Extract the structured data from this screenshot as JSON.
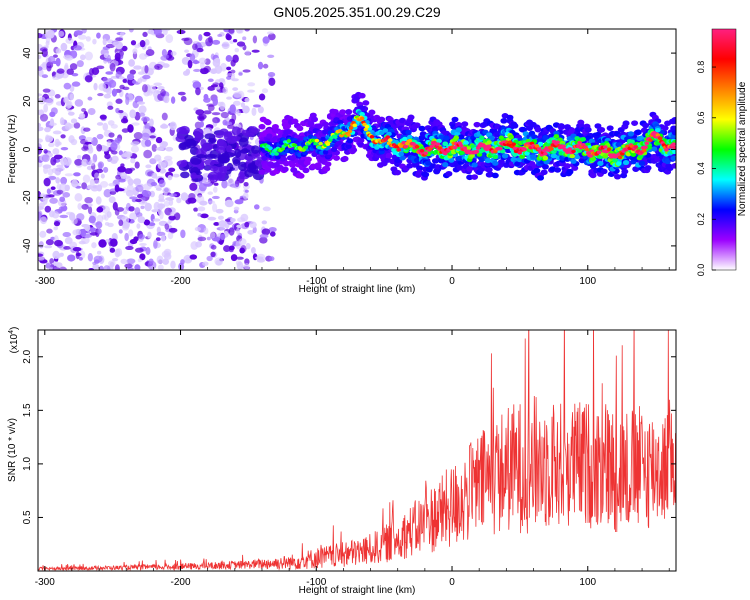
{
  "title": "GN05.2025.351.00.29.C29",
  "chart_data": [
    {
      "type": "heatmap",
      "panel": "spectrogram",
      "xlabel": "Height of straight line (km)",
      "ylabel": "Frequency (Hz)",
      "xlim": [
        -305,
        165
      ],
      "ylim": [
        -50,
        50
      ],
      "xticks": [
        "-300",
        "-200",
        "-100",
        "0",
        "100"
      ],
      "xtick_values": [
        -300,
        -200,
        -100,
        0,
        100
      ],
      "yticks": [
        "-40",
        "-20",
        "0",
        "20",
        "40"
      ],
      "ytick_values": [
        -40,
        -20,
        0,
        20,
        40
      ],
      "colorbar": {
        "label": "Normalized spectral amplitude",
        "range": [
          0,
          0.95
        ],
        "ticks": [
          "0.0",
          "0.2",
          "0.4",
          "0.6",
          "0.8"
        ],
        "tick_values": [
          0.0,
          0.2,
          0.4,
          0.6,
          0.8
        ],
        "stops": [
          "#ffffff",
          "#9b00ff",
          "#0000ff",
          "#00ffff",
          "#00ff00",
          "#ffff00",
          "#ff8000",
          "#ff0000",
          "#ff2080"
        ]
      },
      "ridge": {
        "x": [
          -140,
          -120,
          -100,
          -85,
          -75,
          -70,
          -65,
          -55,
          -40,
          -20,
          0,
          20,
          40,
          60,
          80,
          100,
          120,
          140,
          150,
          165
        ],
        "freq": [
          0,
          1,
          2,
          5,
          9,
          12,
          10,
          4,
          2,
          0,
          1,
          0,
          2,
          0,
          1,
          0,
          -2,
          1,
          5,
          0
        ],
        "amplitude": [
          0.3,
          0.35,
          0.4,
          0.45,
          0.5,
          0.55,
          0.55,
          0.6,
          0.7,
          0.85,
          0.9,
          0.85,
          0.9,
          0.85,
          0.9,
          0.85,
          0.9,
          0.9,
          0.85,
          0.8
        ]
      },
      "noise_region_end": -140
    },
    {
      "type": "line",
      "panel": "snr",
      "xlabel": "Height of straight line (km)",
      "ylabel": "SNR (10 * v/v)",
      "yscale_label": "(x10",
      "yscale_exponent": "4",
      "xlim": [
        -305,
        165
      ],
      "ylim": [
        0,
        2.25
      ],
      "xticks": [
        "-300",
        "-200",
        "-100",
        "0",
        "100"
      ],
      "xtick_values": [
        -300,
        -200,
        -100,
        0,
        100
      ],
      "yticks": [
        "0.5",
        "1.0",
        "1.5",
        "2.0"
      ],
      "ytick_values": [
        0.5,
        1.0,
        1.5,
        2.0
      ],
      "color": "#ee3333",
      "envelope": {
        "x": [
          -305,
          -250,
          -200,
          -150,
          -120,
          -100,
          -80,
          -60,
          -40,
          -20,
          0,
          20,
          40,
          60,
          80,
          100,
          120,
          140,
          165
        ],
        "mean": [
          0.02,
          0.03,
          0.04,
          0.06,
          0.08,
          0.12,
          0.15,
          0.2,
          0.3,
          0.45,
          0.6,
          0.8,
          0.95,
          1.0,
          1.0,
          1.0,
          0.95,
          0.95,
          1.0
        ],
        "spread": [
          0.015,
          0.02,
          0.03,
          0.04,
          0.07,
          0.1,
          0.12,
          0.15,
          0.2,
          0.3,
          0.4,
          0.5,
          0.6,
          0.65,
          0.6,
          0.6,
          0.6,
          0.6,
          0.5
        ]
      }
    }
  ]
}
